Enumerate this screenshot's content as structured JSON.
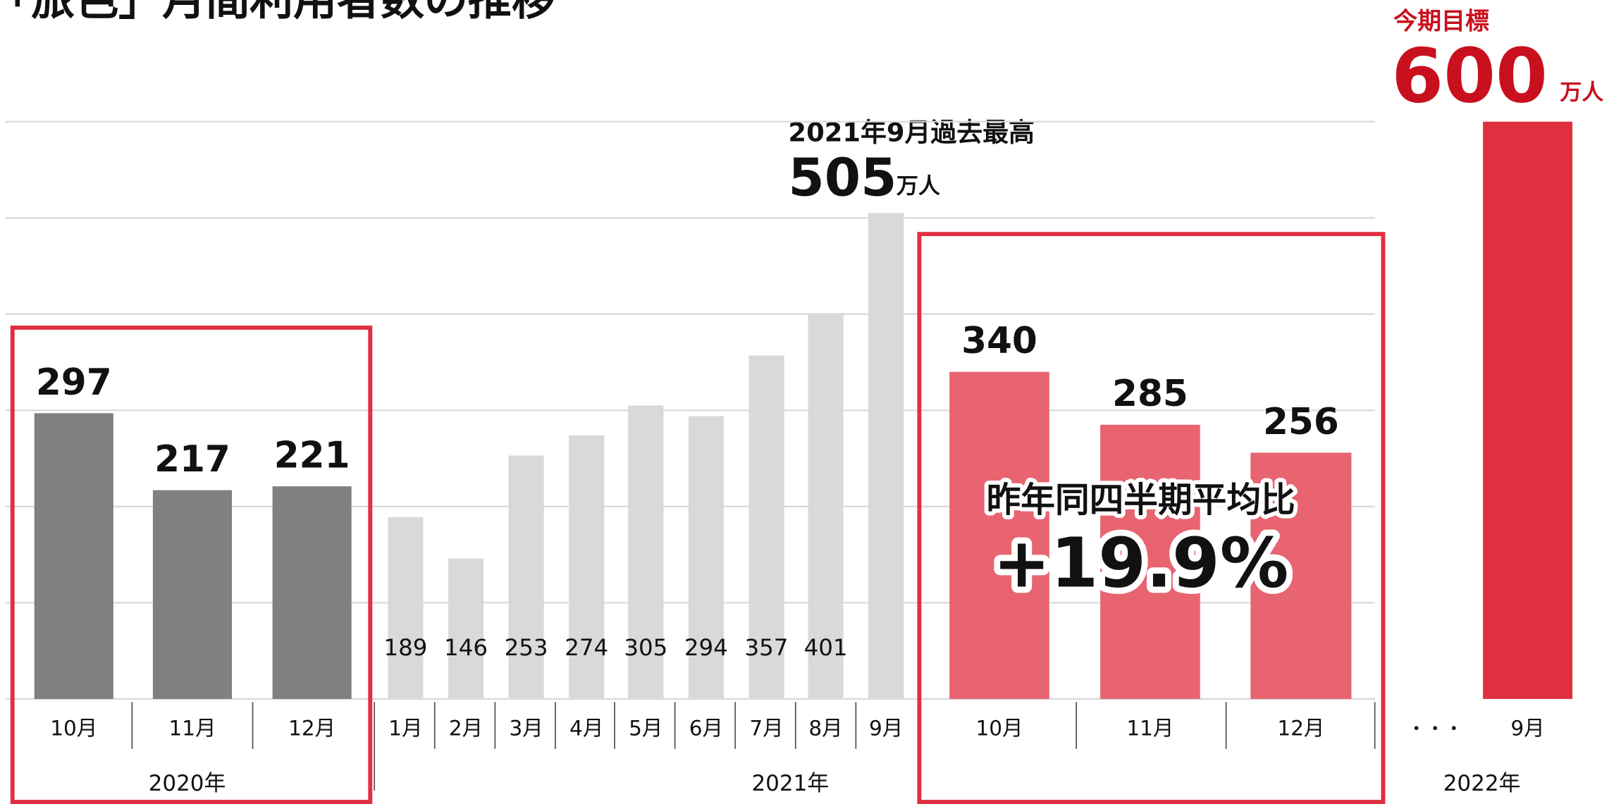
{
  "chart_data": {
    "type": "bar",
    "title": "「旅色」月間利用者数の推移",
    "categories": [
      "10月",
      "11月",
      "12月",
      "1月",
      "2月",
      "3月",
      "4月",
      "5月",
      "6月",
      "7月",
      "8月",
      "9月",
      "10月",
      "11月",
      "12月",
      "9月"
    ],
    "values": [
      297,
      217,
      221,
      189,
      146,
      253,
      274,
      305,
      294,
      357,
      401,
      505,
      340,
      285,
      256,
      600
    ],
    "colors": [
      "#808080",
      "#808080",
      "#808080",
      "#d9d9d9",
      "#d9d9d9",
      "#d9d9d9",
      "#d9d9d9",
      "#d9d9d9",
      "#d9d9d9",
      "#d9d9d9",
      "#d9d9d9",
      "#d9d9d9",
      "#e86470",
      "#e86470",
      "#e86470",
      "#e0303f"
    ],
    "years": [
      "2020年",
      "2021年",
      "2022年"
    ],
    "gap_label": "・・・",
    "unit": "万人",
    "record_label": "2021年9月過去最高",
    "target_label": "今期目標",
    "comparison_label": "昨年同四半期平均比",
    "comparison_value": "+19.9%",
    "ylim": [
      0,
      600
    ],
    "yticks": [
      0,
      100,
      200,
      300,
      400,
      500,
      600
    ],
    "grid": true
  }
}
